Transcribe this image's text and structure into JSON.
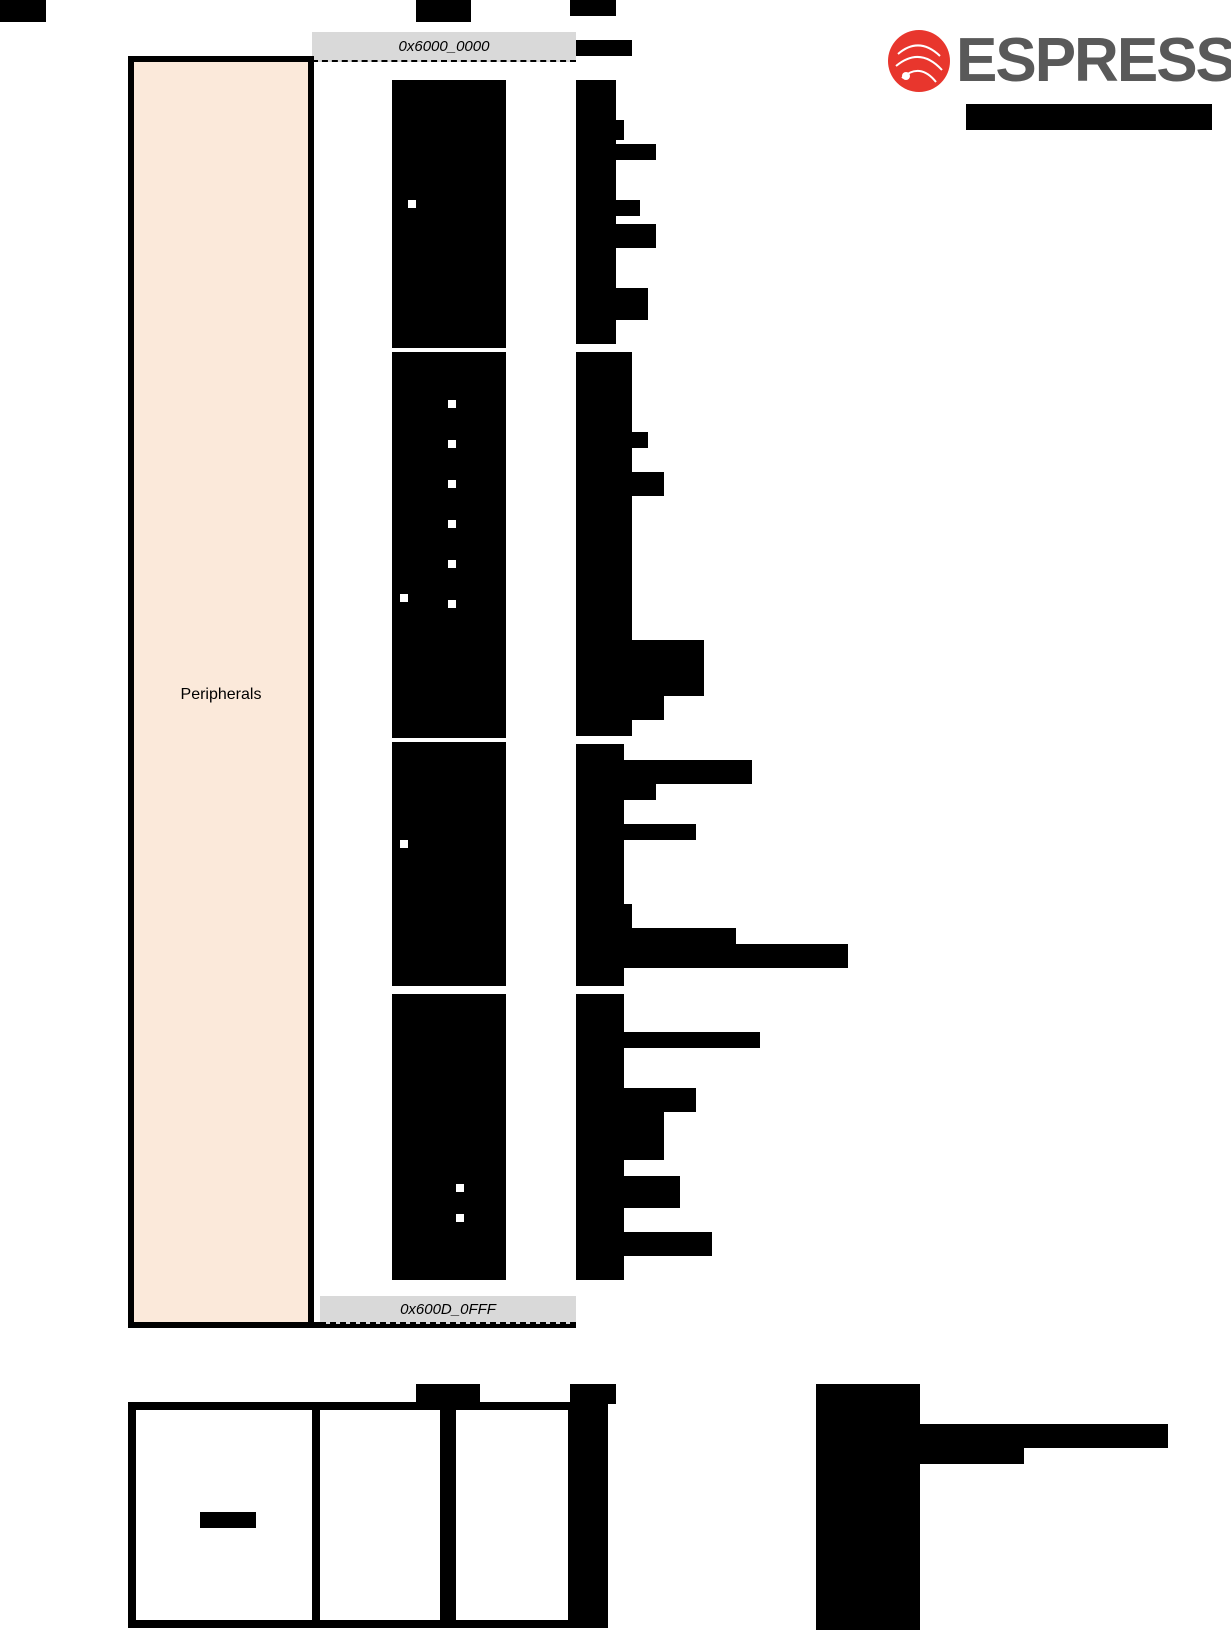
{
  "diagram": {
    "block_label": "Peripherals",
    "start_address": "0x6000_0000",
    "end_address": "0x600D_0FFF"
  },
  "logo": {
    "word": "ESPRESSIF",
    "brand_color": "#e8362d",
    "word_color": "#595959",
    "icon": "espressif-logo-icon"
  },
  "colors": {
    "peripherals_fill": "#fbe9da",
    "address_bar_fill": "#d9d9d9",
    "redacted": "#000000"
  }
}
